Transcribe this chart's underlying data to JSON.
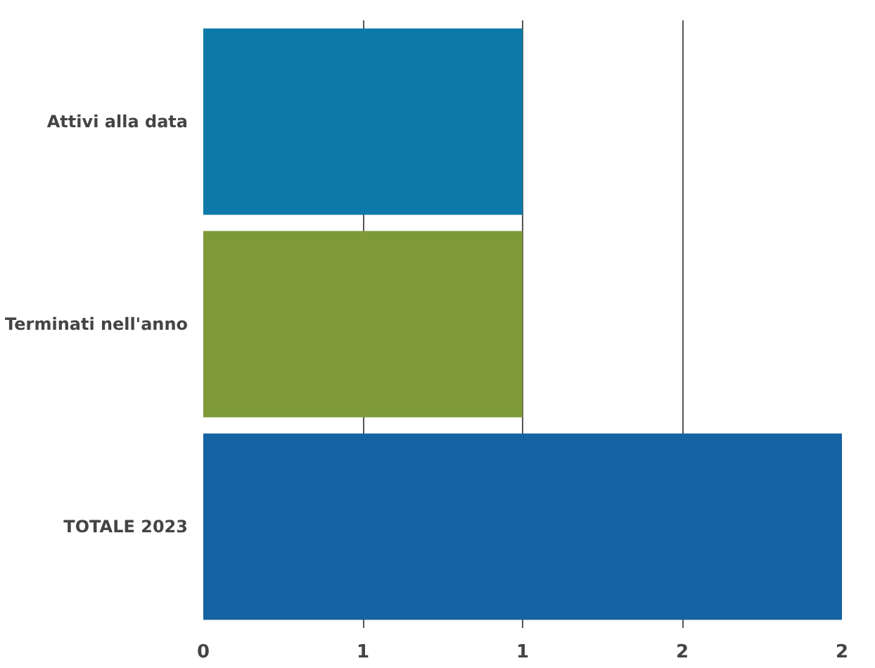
{
  "chart_data": {
    "type": "bar",
    "orientation": "horizontal",
    "categories": [
      "Attivi alla data",
      "Terminati nell'anno",
      "TOTALE 2023"
    ],
    "values": [
      1,
      1,
      2
    ],
    "colors": [
      "#0d79a8",
      "#7d9939",
      "#1563a3"
    ],
    "xlim": [
      0,
      2
    ],
    "xticks": [
      0,
      {
        "value": 0.5,
        "label": "1"
      },
      1,
      {
        "value": 1.5,
        "label": "2"
      },
      2
    ],
    "grid": "x"
  }
}
